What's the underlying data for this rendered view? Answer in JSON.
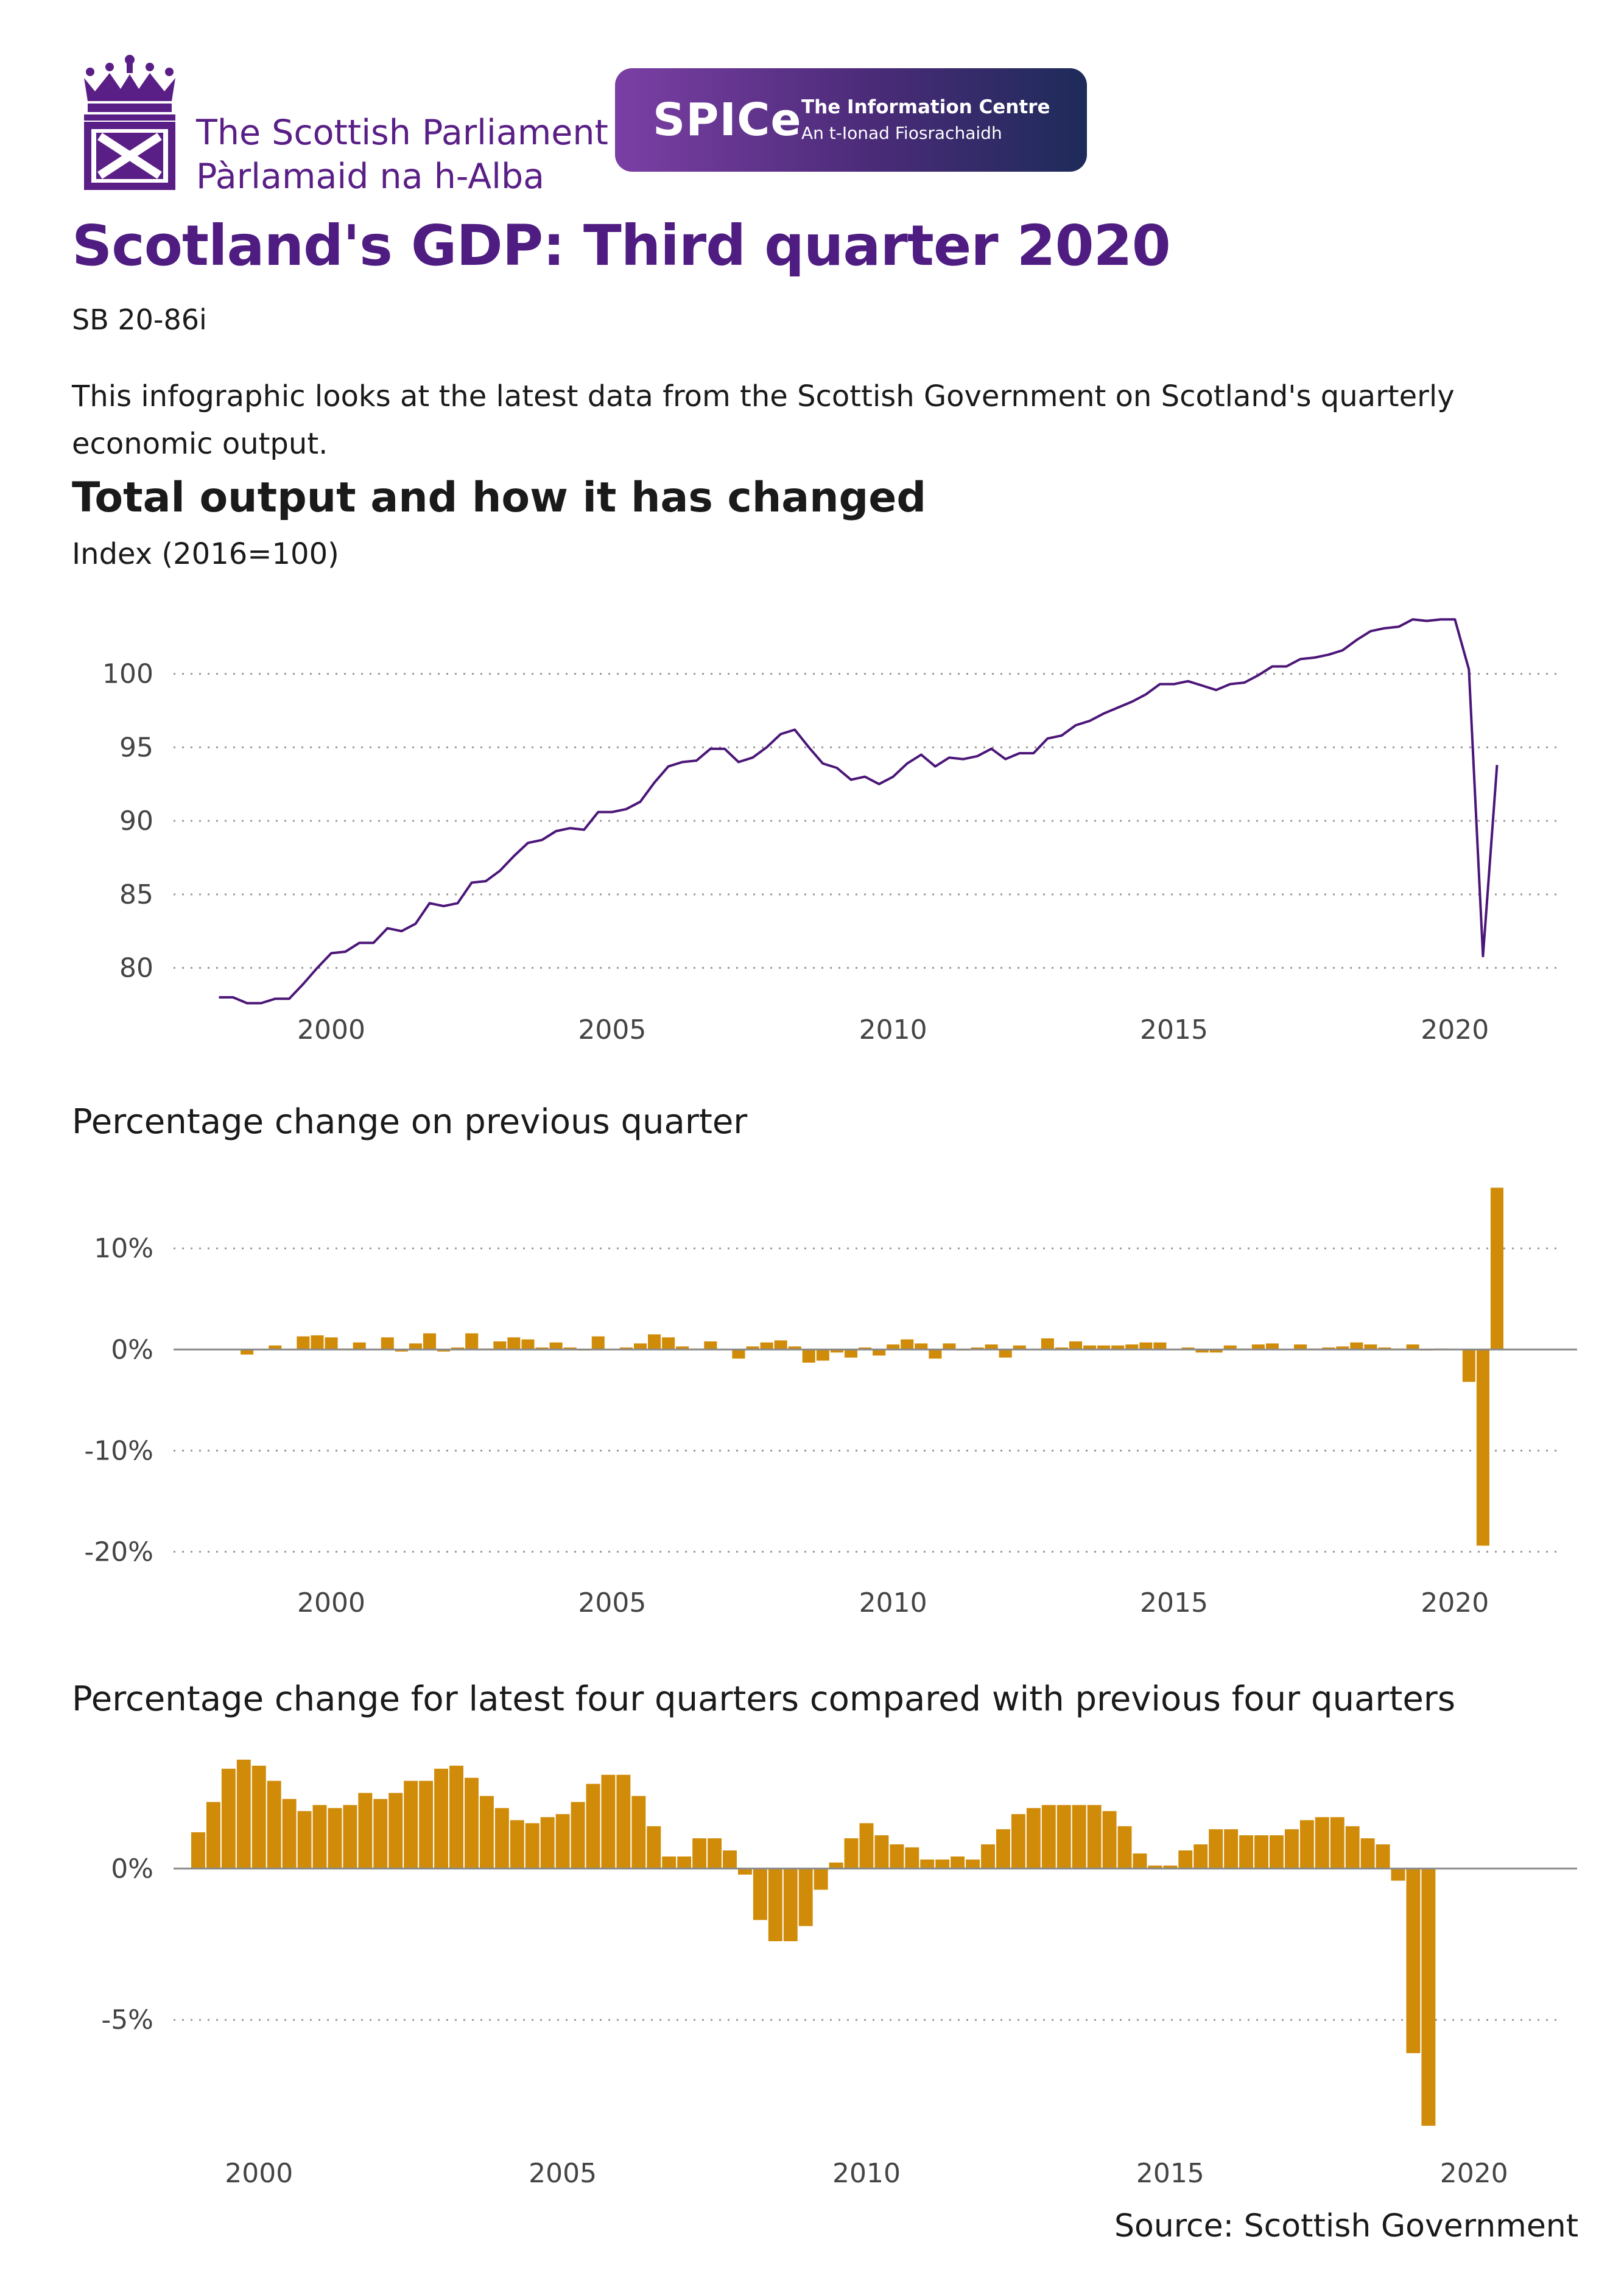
{
  "header": {
    "parliament_name_en": "The Scottish Parliament",
    "parliament_name_gd": "Pàrlamaid na h-Alba",
    "spice_short": "SPICe",
    "spice_line1": "The Information Centre",
    "spice_line2": "An t-Ionad Fiosrachaidh"
  },
  "title": "Scotland's GDP: Third quarter 2020",
  "reference": "SB  20-86i",
  "intro": "This infographic looks at the latest data from the Scottish Government on Scotland's quarterly economic output.",
  "section_title": "Total output and how it has changed",
  "source": "Source: Scottish Government",
  "colors": {
    "purple": "#5a1f86",
    "bar": "#d08b08",
    "line": "#4b1678"
  },
  "chart_data": [
    {
      "type": "line",
      "title": "",
      "ylabel": "Index (2016=100)",
      "start": [
        1998,
        1
      ],
      "x_ticks": [
        2000,
        2005,
        2010,
        2015,
        2020
      ],
      "ylim": [
        77,
        104
      ],
      "y_ticks": [
        80,
        85,
        90,
        95,
        100
      ],
      "grid": true,
      "values": [
        78.0,
        78.0,
        77.6,
        77.6,
        77.9,
        77.9,
        78.9,
        80.0,
        81.0,
        81.1,
        81.7,
        81.7,
        82.7,
        82.5,
        83.0,
        84.4,
        84.2,
        84.4,
        85.8,
        85.9,
        86.6,
        87.6,
        88.5,
        88.7,
        89.3,
        89.5,
        89.4,
        90.6,
        90.6,
        90.8,
        91.3,
        92.6,
        93.7,
        94.0,
        94.1,
        94.9,
        94.9,
        94.0,
        94.3,
        95.0,
        95.9,
        96.2,
        95.0,
        93.9,
        93.6,
        92.8,
        93.0,
        92.5,
        93.0,
        93.9,
        94.5,
        93.7,
        94.3,
        94.2,
        94.4,
        94.9,
        94.2,
        94.6,
        94.6,
        95.6,
        95.8,
        96.5,
        96.8,
        97.3,
        97.7,
        98.1,
        98.6,
        99.3,
        99.3,
        99.5,
        99.2,
        98.9,
        99.3,
        99.4,
        99.9,
        100.5,
        100.5,
        101.0,
        101.1,
        101.3,
        101.6,
        102.3,
        102.9,
        103.1,
        103.2,
        103.7,
        103.6,
        103.7,
        103.7,
        100.3,
        80.8,
        93.8
      ]
    },
    {
      "type": "bar",
      "title": "Percentage change on previous quarter",
      "start": [
        1998,
        1
      ],
      "x_ticks": [
        2000,
        2005,
        2010,
        2015,
        2020
      ],
      "ylim": [
        -21,
        17
      ],
      "y_ticks": [
        10,
        0,
        -10,
        -20
      ],
      "y_tick_labels": [
        "10%",
        "0%",
        "-10%",
        "-20%"
      ],
      "grid": true,
      "values": [
        0.0,
        0.0,
        -0.5,
        0.0,
        0.4,
        0.0,
        1.3,
        1.4,
        1.2,
        0.1,
        0.7,
        0.0,
        1.2,
        -0.2,
        0.6,
        1.6,
        -0.2,
        0.2,
        1.6,
        0.1,
        0.8,
        1.2,
        1.0,
        0.2,
        0.7,
        0.2,
        -0.1,
        1.3,
        0.0,
        0.2,
        0.6,
        1.5,
        1.2,
        0.3,
        0.1,
        0.8,
        0.0,
        -0.9,
        0.3,
        0.7,
        0.9,
        0.3,
        -1.3,
        -1.1,
        -0.3,
        -0.8,
        0.2,
        -0.6,
        0.5,
        1.0,
        0.6,
        -0.9,
        0.6,
        -0.1,
        0.2,
        0.5,
        -0.8,
        0.4,
        0.0,
        1.1,
        0.2,
        0.8,
        0.4,
        0.4,
        0.4,
        0.5,
        0.7,
        0.7,
        0.0,
        0.2,
        -0.3,
        -0.3,
        0.4,
        0.1,
        0.5,
        0.6,
        0.0,
        0.5,
        0.1,
        0.2,
        0.3,
        0.7,
        0.5,
        0.2,
        0.1,
        0.5,
        -0.1,
        0.1,
        0.0,
        -3.2,
        -19.4,
        16.0
      ]
    },
    {
      "type": "bar",
      "title": "Percentage change for latest four quarters compared with previous four quarters",
      "start": [
        1999,
        1
      ],
      "x_ticks": [
        2000,
        2005,
        2010,
        2015,
        2020
      ],
      "ylim": [
        -8.8,
        4.0
      ],
      "y_ticks": [
        0,
        -5
      ],
      "y_tick_labels": [
        "0%",
        "-5%"
      ],
      "grid": true,
      "values": [
        1.2,
        2.2,
        3.3,
        3.6,
        3.4,
        2.9,
        2.3,
        1.9,
        2.1,
        2.0,
        2.1,
        2.5,
        2.3,
        2.5,
        2.9,
        2.9,
        3.3,
        3.4,
        3.0,
        2.4,
        2.0,
        1.6,
        1.5,
        1.7,
        1.8,
        2.2,
        2.8,
        3.1,
        3.1,
        2.4,
        1.4,
        0.4,
        0.4,
        1.0,
        1.0,
        0.6,
        -0.2,
        -1.7,
        -2.4,
        -2.4,
        -1.9,
        -0.7,
        0.2,
        1.0,
        1.5,
        1.1,
        0.8,
        0.7,
        0.3,
        0.3,
        0.4,
        0.3,
        0.8,
        1.3,
        1.8,
        2.0,
        2.1,
        2.1,
        2.1,
        2.1,
        1.9,
        1.4,
        0.5,
        0.1,
        0.1,
        0.6,
        0.8,
        1.3,
        1.3,
        1.1,
        1.1,
        1.1,
        1.3,
        1.6,
        1.7,
        1.7,
        1.4,
        1.0,
        0.8,
        -0.4,
        -6.1,
        -8.5
      ]
    }
  ]
}
